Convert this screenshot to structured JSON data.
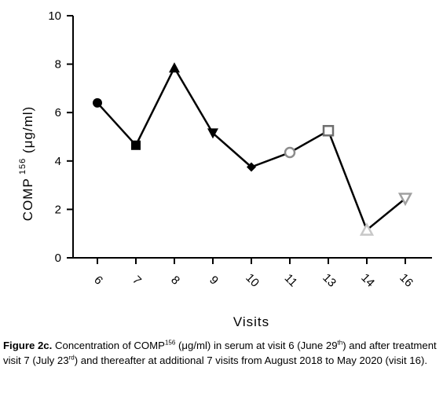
{
  "chart_data": {
    "type": "line",
    "categories": [
      "6",
      "7",
      "8",
      "9",
      "10",
      "11",
      "13",
      "14",
      "16"
    ],
    "series": [
      {
        "values": [
          6.4,
          4.65,
          7.85,
          5.15,
          3.75,
          4.35,
          5.25,
          1.15,
          2.45
        ]
      }
    ],
    "markers": [
      "circle",
      "square",
      "triangle-up",
      "triangle-down",
      "diamond",
      "open-circle",
      "open-square",
      "open-triangle-up",
      "open-triangle-down"
    ],
    "marker_colors": [
      "#000000",
      "#000000",
      "#000000",
      "#000000",
      "#000000",
      "#8c8c8c",
      "#6e6e6e",
      "#c8c8c8",
      "#a0a0a0"
    ],
    "xlabel": "Visits",
    "ylabel": "COMP",
    "ylabel_sup": "156",
    "ylabel_unit": "(μg/ml)",
    "ylim": [
      0,
      10
    ],
    "yticks": [
      "0",
      "2",
      "4",
      "6",
      "8",
      "10"
    ],
    "grid": false,
    "line_color": "#000000"
  },
  "caption": {
    "label": "Figure 2c.",
    "t1": " Concentration of COMP",
    "sup1": "156",
    "t2": " (μg/ml) in serum at visit 6 (June 29",
    "sup2": "th",
    "t3": ") and after treatment visit 7 (July 23",
    "sup3": "rd",
    "t4": ") and thereafter at additional 7 visits from August 2018 to May 2020 (visit 16)."
  }
}
